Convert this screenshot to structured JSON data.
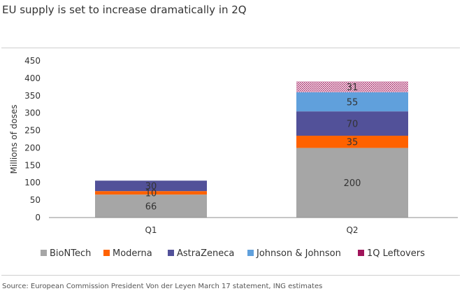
{
  "title": "EU supply is set to increase dramatically in 2Q",
  "source": "Source: European Commission President Von der Leyen March 17 statement, ING estimates",
  "chart_data": {
    "type": "bar",
    "stacked": true,
    "title": "EU supply is set to increase dramatically in 2Q",
    "xlabel": "",
    "ylabel": "Millions of doses",
    "ylim": [
      0,
      450
    ],
    "yticks": [
      0,
      50,
      100,
      150,
      200,
      250,
      300,
      350,
      400,
      450
    ],
    "grid": false,
    "legend_position": "bottom",
    "categories": [
      "Q1",
      "Q2"
    ],
    "series": [
      {
        "name": "BioNTech",
        "values": [
          66,
          200
        ],
        "color": "#a6a6a6",
        "pattern": "solid"
      },
      {
        "name": "Moderna",
        "values": [
          10,
          35
        ],
        "color": "#ff6200",
        "pattern": "solid"
      },
      {
        "name": "AstraZeneca",
        "values": [
          30,
          70
        ],
        "color": "#525199",
        "pattern": "solid"
      },
      {
        "name": "Johnson & Johnson",
        "values": [
          0,
          55
        ],
        "color": "#60a0dc",
        "pattern": "solid"
      },
      {
        "name": "1Q Leftovers",
        "values": [
          0,
          31
        ],
        "color": "#a0145a",
        "pattern": "dots"
      }
    ]
  }
}
